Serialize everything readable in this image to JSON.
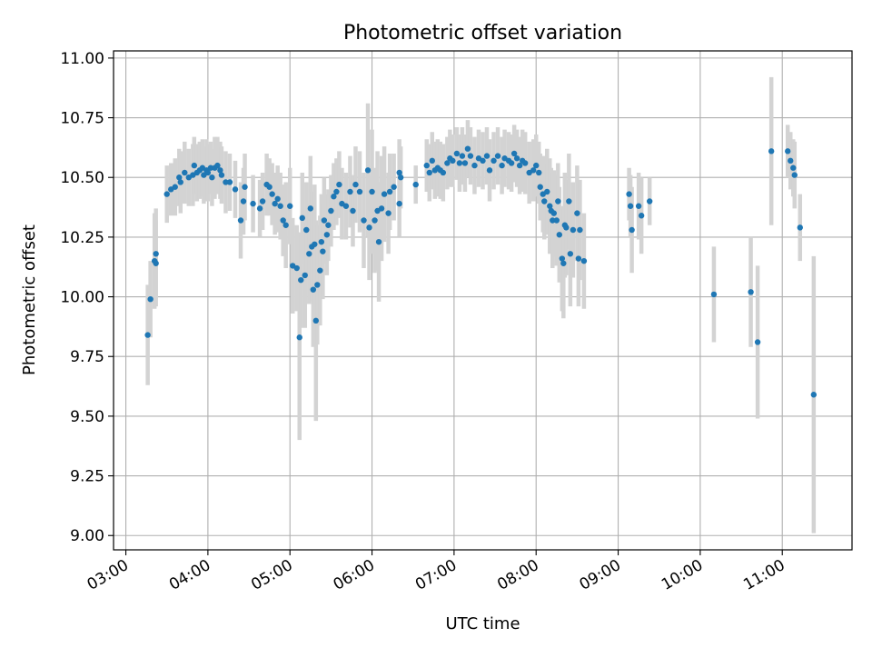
{
  "chart_data": {
    "type": "scatter",
    "title": "Photometric offset variation",
    "xlabel": "UTC time",
    "ylabel": "Photometric offset",
    "x_unit": "UTC time (HH:MM)",
    "xlim": [
      "02:51",
      "11:51"
    ],
    "ylim": [
      8.94,
      11.03
    ],
    "x_ticks": [
      "03:00",
      "04:00",
      "05:00",
      "06:00",
      "07:00",
      "08:00",
      "09:00",
      "10:00",
      "11:00"
    ],
    "y_ticks": [
      "9.00",
      "9.25",
      "9.50",
      "9.75",
      "10.00",
      "10.25",
      "10.50",
      "10.75",
      "11.00"
    ],
    "grid": true,
    "legend": "none",
    "point_color": "#1f77b4",
    "errorbar_color": "#d3d3d3",
    "series": [
      {
        "points": [
          [
            "03:16",
            9.84,
            0.21
          ],
          [
            "03:18",
            9.99,
            0.16
          ],
          [
            "03:21",
            10.15,
            0.2
          ],
          [
            "03:22",
            10.18,
            0.19
          ],
          [
            "03:22",
            10.14,
            0.18
          ],
          [
            "03:30",
            10.43,
            0.12
          ],
          [
            "03:33",
            10.45,
            0.11
          ],
          [
            "03:36",
            10.46,
            0.12
          ],
          [
            "03:39",
            10.5,
            0.12
          ],
          [
            "03:40",
            10.48,
            0.13
          ],
          [
            "03:43",
            10.52,
            0.13
          ],
          [
            "03:46",
            10.5,
            0.12
          ],
          [
            "03:49",
            10.51,
            0.13
          ],
          [
            "03:50",
            10.55,
            0.12
          ],
          [
            "03:52",
            10.52,
            0.12
          ],
          [
            "03:54",
            10.53,
            0.12
          ],
          [
            "03:56",
            10.54,
            0.12
          ],
          [
            "03:57",
            10.51,
            0.12
          ],
          [
            "03:59",
            10.53,
            0.13
          ],
          [
            "04:00",
            10.52,
            0.12
          ],
          [
            "04:02",
            10.54,
            0.11
          ],
          [
            "04:03",
            10.5,
            0.12
          ],
          [
            "04:05",
            10.54,
            0.13
          ],
          [
            "04:07",
            10.55,
            0.12
          ],
          [
            "04:09",
            10.53,
            0.12
          ],
          [
            "04:10",
            10.51,
            0.12
          ],
          [
            "04:13",
            10.48,
            0.13
          ],
          [
            "04:16",
            10.48,
            0.12
          ],
          [
            "04:20",
            10.45,
            0.12
          ],
          [
            "04:24",
            10.32,
            0.16
          ],
          [
            "04:26",
            10.4,
            0.14
          ],
          [
            "04:27",
            10.46,
            0.14
          ],
          [
            "04:33",
            10.39,
            0.12
          ],
          [
            "04:38",
            10.37,
            0.12
          ],
          [
            "04:40",
            10.4,
            0.12
          ],
          [
            "04:43",
            10.47,
            0.13
          ],
          [
            "04:45",
            10.46,
            0.12
          ],
          [
            "04:47",
            10.43,
            0.13
          ],
          [
            "04:49",
            10.39,
            0.13
          ],
          [
            "04:51",
            10.41,
            0.14
          ],
          [
            "04:53",
            10.38,
            0.14
          ],
          [
            "04:55",
            10.32,
            0.15
          ],
          [
            "04:57",
            10.3,
            0.18
          ],
          [
            "05:00",
            10.38,
            0.16
          ],
          [
            "05:02",
            10.13,
            0.2
          ],
          [
            "05:05",
            10.12,
            0.18
          ],
          [
            "05:07",
            9.83,
            0.43
          ],
          [
            "05:08",
            10.07,
            0.2
          ],
          [
            "05:09",
            10.33,
            0.19
          ],
          [
            "05:11",
            10.09,
            0.22
          ],
          [
            "05:12",
            10.28,
            0.2
          ],
          [
            "05:14",
            10.18,
            0.21
          ],
          [
            "05:15",
            10.37,
            0.22
          ],
          [
            "05:16",
            10.21,
            0.23
          ],
          [
            "05:17",
            10.03,
            0.24
          ],
          [
            "05:18",
            10.22,
            0.25
          ],
          [
            "05:19",
            9.9,
            0.42
          ],
          [
            "05:20",
            10.05,
            0.25
          ],
          [
            "05:22",
            10.11,
            0.23
          ],
          [
            "05:23",
            10.23,
            0.2
          ],
          [
            "05:24",
            10.19,
            0.2
          ],
          [
            "05:25",
            10.32,
            0.18
          ],
          [
            "05:27",
            10.26,
            0.17
          ],
          [
            "05:28",
            10.3,
            0.15
          ],
          [
            "05:30",
            10.36,
            0.15
          ],
          [
            "05:32",
            10.42,
            0.14
          ],
          [
            "05:34",
            10.44,
            0.14
          ],
          [
            "05:36",
            10.47,
            0.14
          ],
          [
            "05:38",
            10.39,
            0.15
          ],
          [
            "05:41",
            10.38,
            0.14
          ],
          [
            "05:44",
            10.44,
            0.15
          ],
          [
            "05:46",
            10.36,
            0.15
          ],
          [
            "05:48",
            10.47,
            0.16
          ],
          [
            "05:51",
            10.44,
            0.17
          ],
          [
            "05:54",
            10.32,
            0.2
          ],
          [
            "05:57",
            10.53,
            0.28
          ],
          [
            "05:58",
            10.29,
            0.22
          ],
          [
            "06:00",
            10.44,
            0.26
          ],
          [
            "06:02",
            10.32,
            0.22
          ],
          [
            "06:04",
            10.36,
            0.25
          ],
          [
            "06:05",
            10.23,
            0.25
          ],
          [
            "06:07",
            10.37,
            0.22
          ],
          [
            "06:09",
            10.43,
            0.2
          ],
          [
            "06:12",
            10.35,
            0.17
          ],
          [
            "06:13",
            10.44,
            0.16
          ],
          [
            "06:16",
            10.46,
            0.14
          ],
          [
            "06:20",
            10.39,
            0.14
          ],
          [
            "06:20",
            10.52,
            0.14
          ],
          [
            "06:21",
            10.5,
            0.13
          ],
          [
            "06:32",
            10.47,
            0.08
          ],
          [
            "06:40",
            10.55,
            0.11
          ],
          [
            "06:42",
            10.52,
            0.12
          ],
          [
            "06:44",
            10.57,
            0.12
          ],
          [
            "06:46",
            10.53,
            0.12
          ],
          [
            "06:48",
            10.54,
            0.12
          ],
          [
            "06:50",
            10.53,
            0.12
          ],
          [
            "06:52",
            10.52,
            0.12
          ],
          [
            "06:55",
            10.56,
            0.11
          ],
          [
            "06:57",
            10.58,
            0.12
          ],
          [
            "06:59",
            10.57,
            0.11
          ],
          [
            "07:02",
            10.6,
            0.11
          ],
          [
            "07:04",
            10.56,
            0.12
          ],
          [
            "07:06",
            10.59,
            0.12
          ],
          [
            "07:08",
            10.56,
            0.12
          ],
          [
            "07:10",
            10.62,
            0.12
          ],
          [
            "07:12",
            10.59,
            0.12
          ],
          [
            "07:15",
            10.55,
            0.12
          ],
          [
            "07:18",
            10.58,
            0.12
          ],
          [
            "07:21",
            10.57,
            0.12
          ],
          [
            "07:24",
            10.59,
            0.12
          ],
          [
            "07:26",
            10.53,
            0.13
          ],
          [
            "07:29",
            10.57,
            0.12
          ],
          [
            "07:32",
            10.59,
            0.12
          ],
          [
            "07:35",
            10.55,
            0.12
          ],
          [
            "07:37",
            10.58,
            0.12
          ],
          [
            "07:40",
            10.57,
            0.12
          ],
          [
            "07:42",
            10.56,
            0.12
          ],
          [
            "07:44",
            10.6,
            0.12
          ],
          [
            "07:46",
            10.58,
            0.12
          ],
          [
            "07:48",
            10.55,
            0.12
          ],
          [
            "07:50",
            10.57,
            0.13
          ],
          [
            "07:52",
            10.56,
            0.13
          ],
          [
            "07:55",
            10.52,
            0.13
          ],
          [
            "07:58",
            10.53,
            0.13
          ],
          [
            "08:00",
            10.55,
            0.13
          ],
          [
            "08:02",
            10.52,
            0.13
          ],
          [
            "08:03",
            10.46,
            0.14
          ],
          [
            "08:05",
            10.43,
            0.16
          ],
          [
            "08:06",
            10.4,
            0.16
          ],
          [
            "08:08",
            10.44,
            0.18
          ],
          [
            "08:10",
            10.38,
            0.2
          ],
          [
            "08:11",
            10.36,
            0.18
          ],
          [
            "08:12",
            10.32,
            0.2
          ],
          [
            "08:13",
            10.35,
            0.18
          ],
          [
            "08:15",
            10.32,
            0.19
          ],
          [
            "08:16",
            10.4,
            0.16
          ],
          [
            "08:17",
            10.26,
            0.2
          ],
          [
            "08:19",
            10.16,
            0.22
          ],
          [
            "08:20",
            10.14,
            0.23
          ],
          [
            "08:21",
            10.3,
            0.22
          ],
          [
            "08:22",
            10.29,
            0.2
          ],
          [
            "08:24",
            10.4,
            0.2
          ],
          [
            "08:25",
            10.18,
            0.22
          ],
          [
            "08:27",
            10.28,
            0.2
          ],
          [
            "08:30",
            10.35,
            0.2
          ],
          [
            "08:31",
            10.16,
            0.2
          ],
          [
            "08:32",
            10.28,
            0.21
          ],
          [
            "08:35",
            10.15,
            0.2
          ],
          [
            "09:08",
            10.43,
            0.11
          ],
          [
            "09:09",
            10.38,
            0.13
          ],
          [
            "09:10",
            10.28,
            0.18
          ],
          [
            "09:15",
            10.38,
            0.14
          ],
          [
            "09:17",
            10.34,
            0.16
          ],
          [
            "09:23",
            10.4,
            0.1
          ],
          [
            "10:10",
            10.01,
            0.2
          ],
          [
            "10:37",
            10.02,
            0.23
          ],
          [
            "10:42",
            9.81,
            0.32
          ],
          [
            "10:52",
            10.61,
            0.31
          ],
          [
            "11:04",
            10.61,
            0.11
          ],
          [
            "11:06",
            10.57,
            0.12
          ],
          [
            "11:08",
            10.54,
            0.12
          ],
          [
            "11:09",
            10.51,
            0.14
          ],
          [
            "11:13",
            10.29,
            0.14
          ],
          [
            "11:23",
            9.59,
            0.58
          ]
        ]
      }
    ]
  }
}
